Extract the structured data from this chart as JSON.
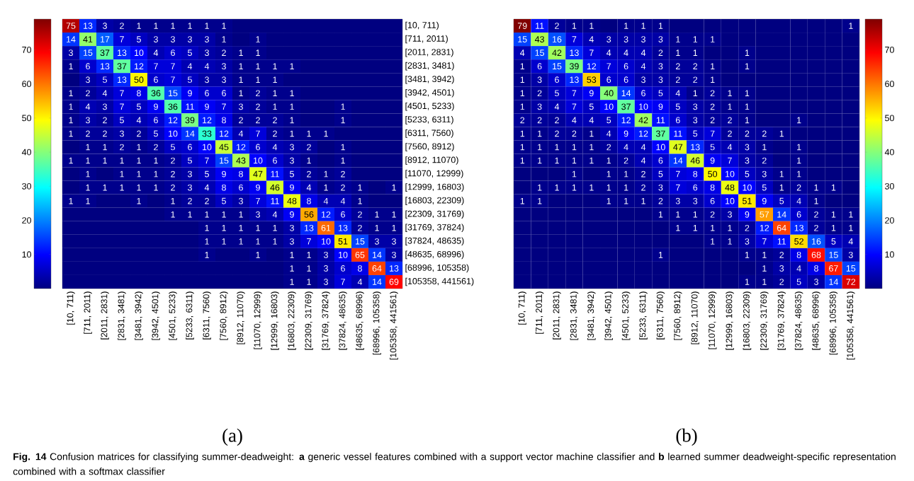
{
  "chart_data": [
    {
      "type": "heatmap",
      "title": "(a)",
      "categories": [
        "[10, 711)",
        "[711, 2011)",
        "[2011, 2831)",
        "[2831, 3481)",
        "[3481, 3942)",
        "[3942, 4501)",
        "[4501, 5233)",
        "[5233, 6311)",
        "[6311, 7560)",
        "[7560, 8912)",
        "[8912, 11070)",
        "[11070, 12999)",
        "[12999, 16803)",
        "[16803, 22309)",
        "[22309, 31769)",
        "[31769, 37824)",
        "[37824, 48635)",
        "[48635, 68996)",
        "[68996, 105358)",
        "[105358, 441561)"
      ],
      "y_categories": [
        "[10, 711)",
        "[711, 2011)",
        "[2011, 2831)",
        "[2831, 3481)",
        "[3481, 3942)",
        "[3942, 4501)",
        "[4501, 5233)",
        "[5233, 6311)",
        "[6311, 7560)",
        "[7560, 8912)",
        "[8912, 11070)",
        "[11070, 12999)",
        "[12999, 16803)",
        "[16803, 22309)",
        "[22309, 31769)",
        "[31769, 37824)",
        "[37824, 48635)",
        "[48635, 68996)",
        "[68996, 105358)",
        "[105358, 441561)"
      ],
      "cells": [
        [
          75,
          13,
          3,
          2,
          1,
          1,
          1,
          1,
          1,
          1,
          0,
          0,
          0,
          0,
          0,
          0,
          0,
          0,
          0,
          0
        ],
        [
          14,
          41,
          17,
          7,
          5,
          3,
          3,
          3,
          3,
          1,
          0,
          1,
          0,
          0,
          0,
          0,
          0,
          0,
          0,
          0
        ],
        [
          3,
          15,
          37,
          13,
          10,
          4,
          6,
          5,
          3,
          2,
          1,
          1,
          0,
          0,
          0,
          0,
          0,
          0,
          0,
          0
        ],
        [
          1,
          6,
          13,
          37,
          12,
          7,
          7,
          4,
          4,
          3,
          1,
          1,
          1,
          1,
          0,
          0,
          0,
          0,
          0,
          0
        ],
        [
          0,
          3,
          5,
          13,
          50,
          6,
          7,
          5,
          3,
          3,
          1,
          1,
          1,
          0,
          0,
          0,
          0,
          0,
          0,
          0
        ],
        [
          1,
          2,
          4,
          7,
          8,
          36,
          15,
          9,
          6,
          6,
          1,
          2,
          1,
          1,
          0,
          0,
          0,
          0,
          0,
          0
        ],
        [
          1,
          4,
          3,
          7,
          5,
          9,
          36,
          11,
          9,
          7,
          3,
          2,
          1,
          1,
          0,
          0,
          1,
          0,
          0,
          0
        ],
        [
          1,
          3,
          2,
          5,
          4,
          6,
          12,
          39,
          12,
          8,
          2,
          2,
          2,
          1,
          0,
          0,
          1,
          0,
          0,
          0
        ],
        [
          1,
          2,
          2,
          3,
          2,
          5,
          10,
          14,
          33,
          12,
          4,
          7,
          2,
          1,
          1,
          1,
          0,
          0,
          0,
          0
        ],
        [
          0,
          1,
          1,
          2,
          1,
          2,
          5,
          6,
          10,
          45,
          12,
          6,
          4,
          3,
          2,
          0,
          1,
          0,
          0,
          0
        ],
        [
          1,
          1,
          1,
          1,
          1,
          1,
          2,
          5,
          7,
          15,
          43,
          10,
          6,
          3,
          1,
          0,
          1,
          0,
          0,
          0
        ],
        [
          0,
          1,
          0,
          1,
          1,
          1,
          2,
          3,
          5,
          9,
          8,
          47,
          11,
          5,
          2,
          1,
          2,
          0,
          0,
          0
        ],
        [
          0,
          1,
          1,
          1,
          1,
          1,
          2,
          3,
          4,
          8,
          6,
          9,
          46,
          9,
          4,
          1,
          2,
          1,
          0,
          1
        ],
        [
          1,
          1,
          0,
          0,
          1,
          0,
          1,
          2,
          2,
          5,
          3,
          7,
          11,
          48,
          8,
          4,
          4,
          1,
          0,
          0
        ],
        [
          0,
          0,
          0,
          0,
          0,
          0,
          1,
          1,
          1,
          1,
          1,
          3,
          4,
          9,
          56,
          12,
          6,
          2,
          1,
          1
        ],
        [
          0,
          0,
          0,
          0,
          0,
          0,
          0,
          0,
          1,
          1,
          1,
          1,
          1,
          3,
          13,
          61,
          13,
          2,
          1,
          1
        ],
        [
          0,
          0,
          0,
          0,
          0,
          0,
          0,
          0,
          1,
          1,
          1,
          1,
          1,
          3,
          7,
          10,
          51,
          15,
          3,
          3
        ],
        [
          0,
          0,
          0,
          0,
          0,
          0,
          0,
          0,
          1,
          0,
          0,
          1,
          0,
          1,
          1,
          3,
          10,
          65,
          14,
          3
        ],
        [
          0,
          0,
          0,
          0,
          0,
          0,
          0,
          0,
          0,
          0,
          0,
          0,
          0,
          1,
          1,
          3,
          6,
          8,
          64,
          13
        ],
        [
          0,
          0,
          0,
          0,
          0,
          0,
          0,
          0,
          0,
          0,
          0,
          0,
          0,
          1,
          1,
          3,
          7,
          4,
          14,
          69
        ]
      ],
      "cell_labels": [
        [
          "75",
          "13",
          "3",
          "2",
          "1",
          "1",
          "1",
          "1",
          "1",
          "1",
          null,
          null,
          null,
          null,
          null,
          null,
          null,
          null,
          null,
          null
        ],
        [
          "14",
          "41",
          "17",
          "7",
          "5",
          "3",
          "3",
          "3",
          "3",
          "1",
          null,
          "1",
          null,
          null,
          null,
          null,
          null,
          null,
          null,
          null
        ],
        [
          "3",
          "15",
          "37",
          "13",
          "10",
          "4",
          "6",
          "5",
          "3",
          "2",
          "1",
          "1",
          null,
          null,
          null,
          null,
          null,
          null,
          null,
          null
        ],
        [
          "1",
          "6",
          "13",
          "37",
          "12",
          "7",
          "7",
          "4",
          "4",
          "3",
          "1",
          "1",
          "1",
          "1",
          null,
          null,
          null,
          null,
          null,
          null
        ],
        [
          null,
          "3",
          "5",
          "13",
          "50",
          "6",
          "7",
          "5",
          "3",
          "3",
          "1",
          "1",
          "1",
          null,
          null,
          null,
          null,
          null,
          null,
          null
        ],
        [
          "1",
          "2",
          "4",
          "7",
          "8",
          "36",
          "15",
          "9",
          "6",
          "6",
          "1",
          "2",
          "1",
          "1",
          null,
          null,
          null,
          null,
          null,
          null
        ],
        [
          "1",
          "4",
          "3",
          "7",
          "5",
          "9",
          "36",
          "11",
          "9",
          "7",
          "3",
          "2",
          "1",
          "1",
          null,
          null,
          "1",
          null,
          null,
          null
        ],
        [
          "1",
          "3",
          "2",
          "5",
          "4",
          "6",
          "12",
          "39",
          "12",
          "8",
          "2",
          "2",
          "2",
          "1",
          null,
          null,
          "1",
          null,
          null,
          null
        ],
        [
          "1",
          "2",
          "2",
          "3",
          "2",
          "5",
          "10",
          "14",
          "33",
          "12",
          "4",
          "7",
          "2",
          "1",
          "1",
          "1",
          null,
          null,
          null,
          null
        ],
        [
          null,
          "1",
          "1",
          "2",
          "1",
          "2",
          "5",
          "6",
          "10",
          "45",
          "12",
          "6",
          "4",
          "3",
          "2",
          null,
          "1",
          null,
          null,
          null
        ],
        [
          "1",
          "1",
          "1",
          "1",
          "1",
          "1",
          "2",
          "5",
          "7",
          "15",
          "43",
          "10",
          "6",
          "3",
          "1",
          null,
          "1",
          null,
          null,
          null
        ],
        [
          null,
          "1",
          null,
          "1",
          "1",
          "1",
          "2",
          "3",
          "5",
          "9",
          "8",
          "47",
          "11",
          "5",
          "2",
          "1",
          "2",
          null,
          null,
          null
        ],
        [
          null,
          "1",
          "1",
          "1",
          "1",
          "1",
          "2",
          "3",
          "4",
          "8",
          "6",
          "9",
          "46",
          "9",
          "4",
          "1",
          "2",
          "1",
          null,
          "1"
        ],
        [
          "1",
          "1",
          null,
          null,
          "1",
          null,
          "1",
          "2",
          "2",
          "5",
          "3",
          "7",
          "11",
          "48",
          "8",
          "4",
          "4",
          "1",
          null,
          null
        ],
        [
          null,
          null,
          null,
          null,
          null,
          null,
          "1",
          "1",
          "1",
          "1",
          "1",
          "3",
          "4",
          "9",
          "56",
          "12",
          "6",
          "2",
          "1",
          "1"
        ],
        [
          null,
          null,
          null,
          null,
          null,
          null,
          null,
          null,
          "1",
          "1",
          "1",
          "1",
          "1",
          "3",
          "13",
          "61",
          "13",
          "2",
          "1",
          "1"
        ],
        [
          null,
          null,
          null,
          null,
          null,
          null,
          null,
          null,
          "1",
          "1",
          "1",
          "1",
          "1",
          "3",
          "7",
          "10",
          "51",
          "15",
          "3",
          "3"
        ],
        [
          null,
          null,
          null,
          null,
          null,
          null,
          null,
          null,
          "1",
          null,
          null,
          "1",
          null,
          "1",
          "1",
          "3",
          "10",
          "65",
          "14",
          "3"
        ],
        [
          null,
          null,
          null,
          null,
          null,
          null,
          null,
          null,
          null,
          null,
          null,
          null,
          null,
          "1",
          "1",
          "3",
          "6",
          "8",
          "64",
          "13"
        ],
        [
          null,
          null,
          null,
          null,
          null,
          null,
          null,
          null,
          null,
          null,
          null,
          null,
          null,
          "1",
          "1",
          "3",
          "7",
          "4",
          "14",
          "69"
        ]
      ],
      "clim": [
        0,
        79
      ],
      "cticks": [
        10,
        20,
        30,
        40,
        50,
        60,
        70
      ],
      "annotations": [
        "**Fig. 14** Confusion matrices for classifying summer-deadweight: **a** generic vessel features combined with a support vector machine classifier and **b** learned summer deadweight-specific representation combined with a softmax classifier"
      ]
    },
    {
      "type": "heatmap",
      "title": "(b)",
      "y_categories": [
        null,
        null,
        null,
        null,
        null,
        null,
        null,
        null,
        null,
        null,
        null,
        null,
        null,
        null,
        null,
        null,
        null,
        null,
        null,
        null
      ],
      "categories": [
        "[10, 711)",
        "[711, 2011)",
        "[2011, 2831)",
        "[2831, 3481)",
        "[3481, 3942)",
        "[3942, 4501)",
        "[4501, 5233)",
        "[5233, 6311)",
        "[6311, 7560)",
        "[7560, 8912)",
        "[8912, 11070)",
        "[11070, 12999)",
        "[12999, 16803)",
        "[16803, 22309)",
        "[22309, 31769)",
        "[31769, 37824)",
        "[37824, 48635)",
        "[48635, 68996)",
        "[68996, 105358)",
        "[105358, 441561)"
      ],
      "cells": [
        [
          79,
          11,
          2,
          1,
          1,
          0,
          1,
          1,
          1,
          0,
          0,
          0,
          0,
          0,
          0,
          0,
          0,
          0,
          0,
          1
        ],
        [
          15,
          43,
          16,
          7,
          4,
          3,
          3,
          3,
          3,
          1,
          1,
          1,
          0,
          0,
          0,
          0,
          0,
          0,
          0,
          0
        ],
        [
          4,
          15,
          42,
          13,
          7,
          4,
          4,
          4,
          2,
          1,
          1,
          0,
          0,
          1,
          0,
          0,
          0,
          0,
          0,
          0
        ],
        [
          1,
          6,
          15,
          39,
          12,
          7,
          6,
          4,
          3,
          2,
          2,
          1,
          0,
          1,
          0,
          0,
          0,
          0,
          0,
          0
        ],
        [
          1,
          3,
          6,
          13,
          53,
          6,
          6,
          3,
          3,
          2,
          2,
          1,
          0,
          0,
          0,
          0,
          0,
          0,
          0,
          0
        ],
        [
          1,
          2,
          5,
          7,
          9,
          40,
          14,
          6,
          5,
          4,
          1,
          2,
          1,
          1,
          0,
          0,
          0,
          0,
          0,
          0
        ],
        [
          1,
          3,
          4,
          7,
          5,
          10,
          37,
          10,
          9,
          5,
          3,
          2,
          1,
          1,
          0,
          0,
          0,
          0,
          0,
          0
        ],
        [
          2,
          2,
          2,
          4,
          4,
          5,
          12,
          42,
          11,
          6,
          3,
          2,
          2,
          1,
          0,
          0,
          1,
          0,
          0,
          0
        ],
        [
          1,
          1,
          2,
          2,
          1,
          4,
          9,
          12,
          37,
          11,
          5,
          7,
          2,
          2,
          2,
          1,
          0,
          0,
          0,
          0
        ],
        [
          1,
          1,
          1,
          1,
          1,
          2,
          4,
          4,
          10,
          47,
          13,
          5,
          4,
          3,
          1,
          0,
          1,
          0,
          0,
          0
        ],
        [
          1,
          1,
          1,
          1,
          1,
          1,
          2,
          4,
          6,
          14,
          46,
          9,
          7,
          3,
          2,
          0,
          1,
          0,
          0,
          0
        ],
        [
          0,
          0,
          0,
          1,
          0,
          1,
          1,
          2,
          5,
          7,
          8,
          50,
          10,
          5,
          3,
          1,
          1,
          0,
          0,
          0
        ],
        [
          0,
          1,
          1,
          1,
          1,
          1,
          1,
          2,
          3,
          7,
          6,
          8,
          48,
          10,
          5,
          1,
          2,
          1,
          1,
          0
        ],
        [
          1,
          1,
          0,
          0,
          0,
          1,
          1,
          1,
          2,
          3,
          3,
          6,
          10,
          51,
          9,
          5,
          4,
          1,
          0,
          0
        ],
        [
          0,
          0,
          0,
          0,
          0,
          0,
          0,
          0,
          1,
          1,
          1,
          2,
          3,
          9,
          57,
          14,
          6,
          2,
          1,
          1
        ],
        [
          0,
          0,
          0,
          0,
          0,
          0,
          0,
          0,
          0,
          1,
          1,
          1,
          1,
          2,
          12,
          64,
          13,
          2,
          1,
          1
        ],
        [
          0,
          0,
          0,
          0,
          0,
          0,
          0,
          0,
          0,
          0,
          0,
          1,
          1,
          3,
          7,
          11,
          52,
          16,
          5,
          4
        ],
        [
          0,
          0,
          0,
          0,
          0,
          0,
          0,
          0,
          1,
          0,
          0,
          0,
          0,
          1,
          1,
          2,
          8,
          68,
          15,
          3
        ],
        [
          0,
          0,
          0,
          0,
          0,
          0,
          0,
          0,
          0,
          0,
          0,
          0,
          0,
          0,
          1,
          3,
          4,
          8,
          67,
          15
        ],
        [
          0,
          0,
          0,
          0,
          0,
          0,
          0,
          0,
          0,
          0,
          0,
          0,
          0,
          1,
          1,
          2,
          5,
          3,
          14,
          72
        ]
      ],
      "cell_labels": [
        [
          "79",
          "11",
          "2",
          "1",
          "1",
          null,
          "1",
          "1",
          "1",
          null,
          null,
          null,
          null,
          null,
          null,
          null,
          null,
          null,
          null,
          "1"
        ],
        [
          "15",
          "43",
          "16",
          "7",
          "4",
          "3",
          "3",
          "3",
          "3",
          "1",
          "1",
          "1",
          null,
          null,
          null,
          null,
          null,
          null,
          null,
          null
        ],
        [
          "4",
          "15",
          "42",
          "13",
          "7",
          "4",
          "4",
          "4",
          "2",
          "1",
          "1",
          null,
          null,
          "1",
          null,
          null,
          null,
          null,
          null,
          null
        ],
        [
          "1",
          "6",
          "15",
          "39",
          "12",
          "7",
          "6",
          "4",
          "3",
          "2",
          "2",
          "1",
          null,
          "1",
          null,
          null,
          null,
          null,
          null,
          null
        ],
        [
          "1",
          "3",
          "6",
          "13",
          "53",
          "6",
          "6",
          "3",
          "3",
          "2",
          "2",
          "1",
          null,
          null,
          null,
          null,
          null,
          null,
          null,
          null
        ],
        [
          "1",
          "2",
          "5",
          "7",
          "9",
          "40",
          "14",
          "6",
          "5",
          "4",
          "1",
          "2",
          "1",
          "1",
          null,
          null,
          null,
          null,
          null,
          null
        ],
        [
          "1",
          "3",
          "4",
          "7",
          "5",
          "10",
          "37",
          "10",
          "9",
          "5",
          "3",
          "2",
          "1",
          "1",
          null,
          null,
          null,
          null,
          null,
          null
        ],
        [
          "2",
          "2",
          "2",
          "4",
          "4",
          "5",
          "12",
          "42",
          "11",
          "6",
          "3",
          "2",
          "2",
          "1",
          null,
          null,
          "1",
          null,
          null,
          null
        ],
        [
          "1",
          "1",
          "2",
          "2",
          "1",
          "4",
          "9",
          "12",
          "37",
          "11",
          "5",
          "7",
          "2",
          "2",
          "2",
          "1",
          null,
          null,
          null,
          null
        ],
        [
          "1",
          "1",
          "1",
          "1",
          "1",
          "2",
          "4",
          "4",
          "10",
          "47",
          "13",
          "5",
          "4",
          "3",
          "1",
          null,
          "1",
          null,
          null,
          null
        ],
        [
          "1",
          "1",
          "1",
          "1",
          "1",
          "1",
          "2",
          "4",
          "6",
          "14",
          "46",
          "9",
          "7",
          "3",
          "2",
          null,
          "1",
          null,
          null,
          null
        ],
        [
          null,
          null,
          null,
          "1",
          null,
          "1",
          "1",
          "2",
          "5",
          "7",
          "8",
          "50",
          "10",
          "5",
          "3",
          "1",
          "1",
          null,
          null,
          null
        ],
        [
          null,
          "1",
          "1",
          "1",
          "1",
          "1",
          "1",
          "2",
          "3",
          "7",
          "6",
          "8",
          "48",
          "10",
          "5",
          "1",
          "2",
          "1",
          "1",
          null
        ],
        [
          "1",
          "1",
          null,
          null,
          null,
          "1",
          "1",
          "1",
          "2",
          "3",
          "3",
          "6",
          "10",
          "51",
          "9",
          "5",
          "4",
          "1",
          null,
          null
        ],
        [
          null,
          null,
          null,
          null,
          null,
          null,
          null,
          null,
          "1",
          "1",
          "1",
          "2",
          "3",
          "9",
          "57",
          "14",
          "6",
          "2",
          "1",
          "1"
        ],
        [
          null,
          null,
          null,
          null,
          null,
          null,
          null,
          null,
          null,
          "1",
          "1",
          "1",
          "1",
          "2",
          "12",
          "64",
          "13",
          "2",
          "1",
          "1"
        ],
        [
          null,
          null,
          null,
          null,
          null,
          null,
          null,
          null,
          null,
          null,
          null,
          "1",
          "1",
          "3",
          "7",
          "11",
          "52",
          "16",
          "5",
          "4"
        ],
        [
          null,
          null,
          null,
          null,
          null,
          null,
          null,
          null,
          "1",
          null,
          null,
          null,
          null,
          "1",
          "1",
          "2",
          "8",
          "68",
          "15",
          "3"
        ],
        [
          null,
          null,
          null,
          null,
          null,
          null,
          null,
          null,
          null,
          null,
          null,
          null,
          null,
          null,
          "1",
          "3",
          "4",
          "8",
          "67",
          "15"
        ],
        [
          null,
          null,
          null,
          null,
          null,
          null,
          null,
          null,
          null,
          null,
          null,
          null,
          null,
          "1",
          "1",
          "2",
          "5",
          "3",
          "14",
          "72"
        ]
      ],
      "clim": [
        0,
        79
      ],
      "cticks": [
        10,
        20,
        30,
        40,
        50,
        60,
        70
      ]
    }
  ]
}
